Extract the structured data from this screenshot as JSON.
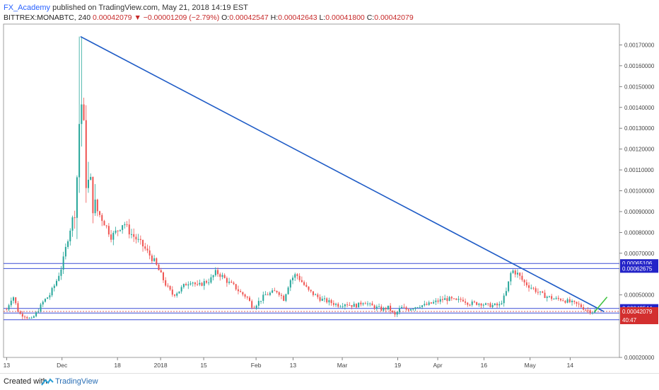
{
  "header": {
    "author": "FX_Academy",
    "published_text": "published on TradingView.com, May 21, 2018 14:19 EST"
  },
  "symbol_bar": {
    "symbol": "BITTREX:MONABTC, 240",
    "last": "0.00042079",
    "change_arrow": "▼",
    "change": "−0.00001209 (−2.79%)",
    "open_label": "O:",
    "open": "0.00042547",
    "high_label": "H:",
    "high": "0.00042643",
    "low_label": "L:",
    "low": "0.00041800",
    "close_label": "C:",
    "close": "0.00042079"
  },
  "footer": {
    "created_label": "Created with",
    "brand": "TradingView",
    "logo_icon": "tradingview-logo-icon"
  },
  "colors": {
    "up": "#26a69a",
    "down": "#ef5350",
    "trendline": "#1e5bc6",
    "level": "#3b4fd6",
    "last_price": "#d32f2f",
    "projection": "#43c443"
  },
  "chart_data": {
    "type": "candlestick",
    "ylim": [
      0.0002,
      0.0018
    ],
    "y_ticks": [
      0.0002,
      0.0017,
      0.0016,
      0.0015,
      0.0014,
      0.0013,
      0.0012,
      0.0011,
      0.001,
      0.0009,
      0.0008,
      0.0007,
      0.0005
    ],
    "y_tick_labels": [
      "0.00020000",
      "0.00170000",
      "0.00160000",
      "0.00150000",
      "0.00140000",
      "0.00130000",
      "0.00120000",
      "0.00110000",
      "0.00100000",
      "0.00090000",
      "0.00080000",
      "0.00070000",
      "0.00050000"
    ],
    "x_ticks": [
      {
        "label": "13",
        "t": 0.0
      },
      {
        "label": "Dec",
        "t": 18.0
      },
      {
        "label": "18",
        "t": 36.0
      },
      {
        "label": "2018",
        "t": 50.0
      },
      {
        "label": "15",
        "t": 64.0
      },
      {
        "label": "Feb",
        "t": 81.0
      },
      {
        "label": "13",
        "t": 93.0
      },
      {
        "label": "Mar",
        "t": 109.0
      },
      {
        "label": "19",
        "t": 127.0
      },
      {
        "label": "Apr",
        "t": 140.0
      },
      {
        "label": "16",
        "t": 155.0
      },
      {
        "label": "May",
        "t": 170.0
      },
      {
        "label": "14",
        "t": 183.0
      }
    ],
    "xlim": [
      -1,
      199
    ],
    "series": [
      {
        "kind": "close",
        "points": [
          [
            0,
            0.00043
          ],
          [
            2,
            0.0005
          ],
          [
            4,
            0.00041
          ],
          [
            6,
            0.0004
          ],
          [
            8,
            0.00038
          ],
          [
            10,
            0.00042
          ],
          [
            12,
            0.00047
          ],
          [
            14,
            0.0005
          ],
          [
            16,
            0.00056
          ],
          [
            18,
            0.00064
          ],
          [
            20,
            0.00078
          ],
          [
            22,
            0.0009
          ],
          [
            23,
            0.0011
          ],
          [
            24,
            0.00148
          ],
          [
            25,
            0.0013
          ],
          [
            26,
            0.001
          ],
          [
            27,
            0.00106
          ],
          [
            28,
            0.00094
          ],
          [
            30,
            0.00089
          ],
          [
            32,
            0.00084
          ],
          [
            34,
            0.00078
          ],
          [
            36,
            0.00081
          ],
          [
            38,
            0.00085
          ],
          [
            40,
            0.0008
          ],
          [
            42,
            0.00077
          ],
          [
            44,
            0.00074
          ],
          [
            46,
            0.0007
          ],
          [
            48,
            0.00066
          ],
          [
            50,
            0.0006
          ],
          [
            52,
            0.00054
          ],
          [
            54,
            0.0005
          ],
          [
            56,
            0.00052
          ],
          [
            58,
            0.00055
          ],
          [
            60,
            0.00057
          ],
          [
            62,
            0.00054
          ],
          [
            64,
            0.00056
          ],
          [
            66,
            0.00057
          ],
          [
            68,
            0.00061
          ],
          [
            70,
            0.00059
          ],
          [
            72,
            0.00056
          ],
          [
            74,
            0.00054
          ],
          [
            76,
            0.00051
          ],
          [
            78,
            0.00049
          ],
          [
            80,
            0.00044
          ],
          [
            82,
            0.00047
          ],
          [
            84,
            0.0005
          ],
          [
            86,
            0.00051
          ],
          [
            88,
            0.00052
          ],
          [
            90,
            0.00048
          ],
          [
            92,
            0.00057
          ],
          [
            94,
            0.0006
          ],
          [
            96,
            0.00056
          ],
          [
            98,
            0.00052
          ],
          [
            100,
            0.0005
          ],
          [
            102,
            0.00048
          ],
          [
            104,
            0.00047
          ],
          [
            106,
            0.00046
          ],
          [
            108,
            0.00045
          ],
          [
            110,
            0.00046
          ],
          [
            112,
            0.00045
          ],
          [
            114,
            0.00045
          ],
          [
            116,
            0.00047
          ],
          [
            118,
            0.00045
          ],
          [
            120,
            0.00044
          ],
          [
            122,
            0.00043
          ],
          [
            124,
            0.00044
          ],
          [
            126,
            0.0004
          ],
          [
            128,
            0.00044
          ],
          [
            130,
            0.00043
          ],
          [
            132,
            0.00044
          ],
          [
            134,
            0.00045
          ],
          [
            136,
            0.00045
          ],
          [
            138,
            0.00046
          ],
          [
            140,
            0.00047
          ],
          [
            142,
            0.00048
          ],
          [
            144,
            0.00048
          ],
          [
            146,
            0.00047
          ],
          [
            148,
            0.00048
          ],
          [
            150,
            0.00046
          ],
          [
            152,
            0.00046
          ],
          [
            154,
            0.00046
          ],
          [
            156,
            0.00045
          ],
          [
            158,
            0.00045
          ],
          [
            160,
            0.00045
          ],
          [
            162,
            0.0005
          ],
          [
            164,
            0.00062
          ],
          [
            166,
            0.0006
          ],
          [
            168,
            0.00056
          ],
          [
            170,
            0.00054
          ],
          [
            172,
            0.00052
          ],
          [
            174,
            0.0005
          ],
          [
            176,
            0.00049
          ],
          [
            178,
            0.00048
          ],
          [
            180,
            0.00048
          ],
          [
            182,
            0.00047
          ],
          [
            184,
            0.00046
          ],
          [
            186,
            0.00045
          ],
          [
            188,
            0.00043
          ],
          [
            190,
            0.00042
          ],
          [
            191,
            0.00042079
          ]
        ]
      }
    ],
    "trendline": {
      "from": [
        24,
        0.00174
      ],
      "to": [
        194,
        0.00042
      ]
    },
    "projection": {
      "from": [
        191,
        0.00042
      ],
      "to": [
        195,
        0.00049
      ]
    },
    "levels": [
      {
        "value": 0.00065106,
        "label": "0.00065106"
      },
      {
        "value": 0.00062675,
        "label": "0.00062675"
      },
      {
        "value": 0.00043544,
        "label": "0.00043544"
      },
      {
        "value": 0.00041307,
        "label": "0.00041307"
      },
      {
        "value": 0.00038081,
        "label": "0.00038081"
      }
    ],
    "last_price": {
      "value": 0.00042079,
      "label": "0.00042079",
      "countdown": "40:47"
    }
  }
}
